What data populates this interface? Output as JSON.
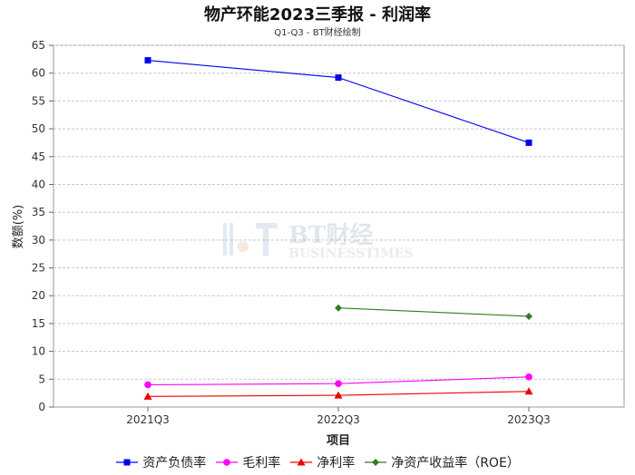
{
  "chart_data": {
    "type": "line",
    "title": "物产环能2023三季报 - 利润率",
    "subtitle": "Q1-Q3 - BT财经绘制",
    "xlabel": "项目",
    "ylabel": "数额(%)",
    "categories": [
      "2021Q3",
      "2022Q3",
      "2023Q3"
    ],
    "ylim": [
      0,
      65
    ],
    "yticks": [
      0,
      5,
      10,
      15,
      20,
      25,
      30,
      35,
      40,
      45,
      50,
      55,
      60,
      65
    ],
    "grid": true,
    "legend_position": "bottom",
    "series": [
      {
        "name": "资产负债率",
        "color": "#0000ee",
        "marker": "square",
        "values": [
          62.3,
          59.2,
          47.5
        ]
      },
      {
        "name": "毛利率",
        "color": "#ff00ff",
        "marker": "circle",
        "values": [
          4.0,
          4.2,
          5.4
        ]
      },
      {
        "name": "净利率",
        "color": "#ee0000",
        "marker": "triangle",
        "values": [
          1.9,
          2.1,
          2.8
        ]
      },
      {
        "name": "净资产收益率（ROE）",
        "color": "#2e7d1e",
        "marker": "diamond",
        "values": [
          null,
          17.8,
          16.3
        ]
      }
    ]
  },
  "watermark": {
    "brand": "BT财经",
    "sub": "BUSINESSTIMES"
  }
}
